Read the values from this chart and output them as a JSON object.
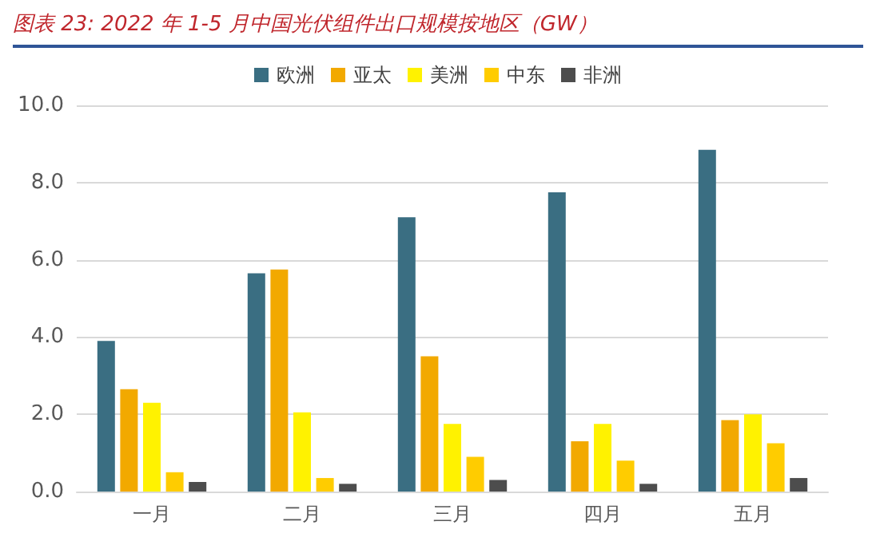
{
  "chart_data": {
    "type": "bar",
    "title": "图表 23:  2022 年 1-5 月中国光伏组件出口规模按地区（GW）",
    "categories": [
      "一月",
      "二月",
      "三月",
      "四月",
      "五月"
    ],
    "series": [
      {
        "name": "欧洲",
        "color": "#3a6e82",
        "values": [
          3.9,
          5.65,
          7.1,
          7.75,
          8.85
        ]
      },
      {
        "name": "亚太",
        "color": "#f2a900",
        "values": [
          2.65,
          5.75,
          3.5,
          1.3,
          1.85
        ]
      },
      {
        "name": "美洲",
        "color": "#fff200",
        "values": [
          2.3,
          2.05,
          1.75,
          1.75,
          2.0
        ]
      },
      {
        "name": "中东",
        "color": "#ffcc00",
        "values": [
          0.5,
          0.35,
          0.9,
          0.8,
          1.25
        ]
      },
      {
        "name": "非洲",
        "color": "#4d4d4d",
        "values": [
          0.25,
          0.2,
          0.3,
          0.2,
          0.35
        ]
      }
    ],
    "ylim": [
      0,
      10
    ],
    "yticks": [
      {
        "value": 0,
        "label": "0.0"
      },
      {
        "value": 2,
        "label": "2.0"
      },
      {
        "value": 4,
        "label": "4.0"
      },
      {
        "value": 6,
        "label": "6.0"
      },
      {
        "value": 8,
        "label": "8.0"
      },
      {
        "value": 10,
        "label": "10.0"
      }
    ],
    "grid": "y",
    "legend": "top"
  }
}
